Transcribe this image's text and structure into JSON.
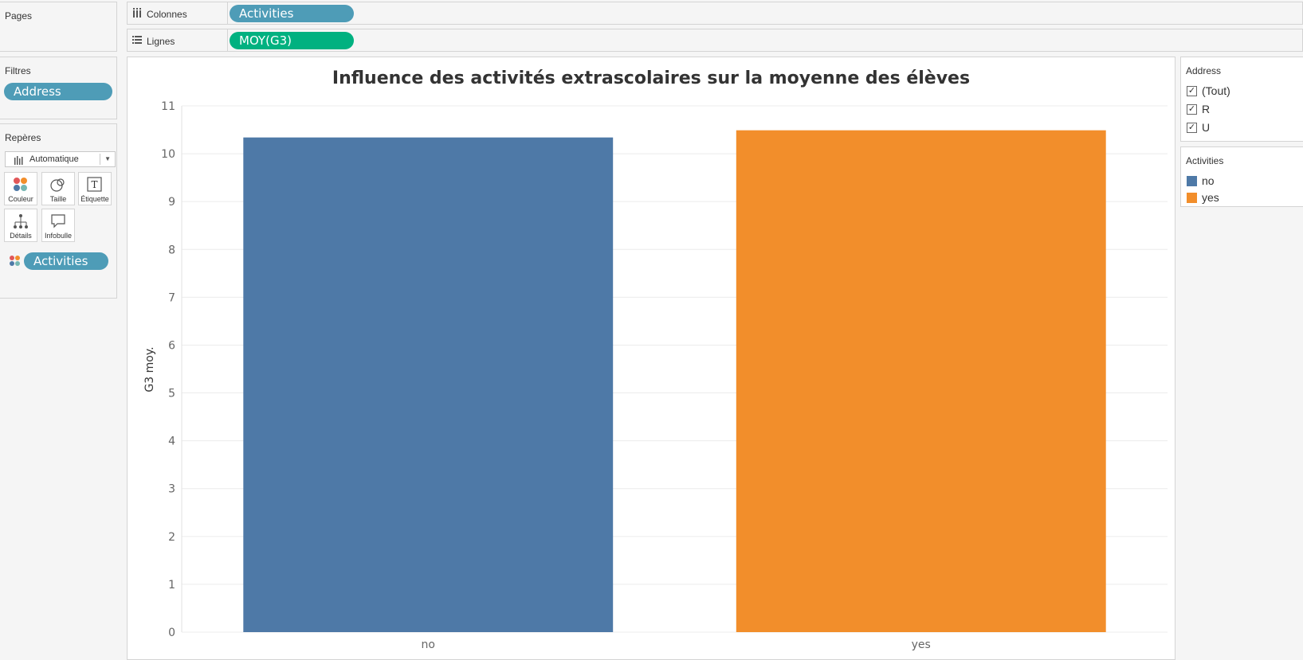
{
  "cards": {
    "pages_title": "Pages",
    "filters_title": "Filtres",
    "filter_pill": "Address",
    "marks_title": "Repères",
    "marks_type": "Automatique",
    "marks_buttons": [
      "Couleur",
      "Taille",
      "Étiquette",
      "Détails",
      "Infobulle"
    ],
    "marks_color_pill": "Activities"
  },
  "shelves": {
    "columns_label": "Colonnes",
    "columns_pill": "Activities",
    "rows_label": "Lignes",
    "rows_pill": "MOY(G3)"
  },
  "chart_data": {
    "type": "bar",
    "title": "Influence des activités extrascolaires sur la moyenne des élèves",
    "categories": [
      "no",
      "yes"
    ],
    "values": [
      10.34,
      10.49
    ],
    "colors": [
      "#4e79a7",
      "#f28e2b"
    ],
    "ylabel": "G3 moy.",
    "xlabel": "",
    "ylim": [
      0,
      11
    ],
    "yticks": [
      "0",
      "1",
      "2",
      "3",
      "4",
      "5",
      "6",
      "7",
      "8",
      "9",
      "10",
      "11"
    ],
    "grid": true
  },
  "filter_card": {
    "title": "Address",
    "items": [
      "(Tout)",
      "R",
      "U"
    ],
    "check": "✓"
  },
  "legend_card": {
    "title": "Activities",
    "items": [
      "no",
      "yes"
    ]
  }
}
